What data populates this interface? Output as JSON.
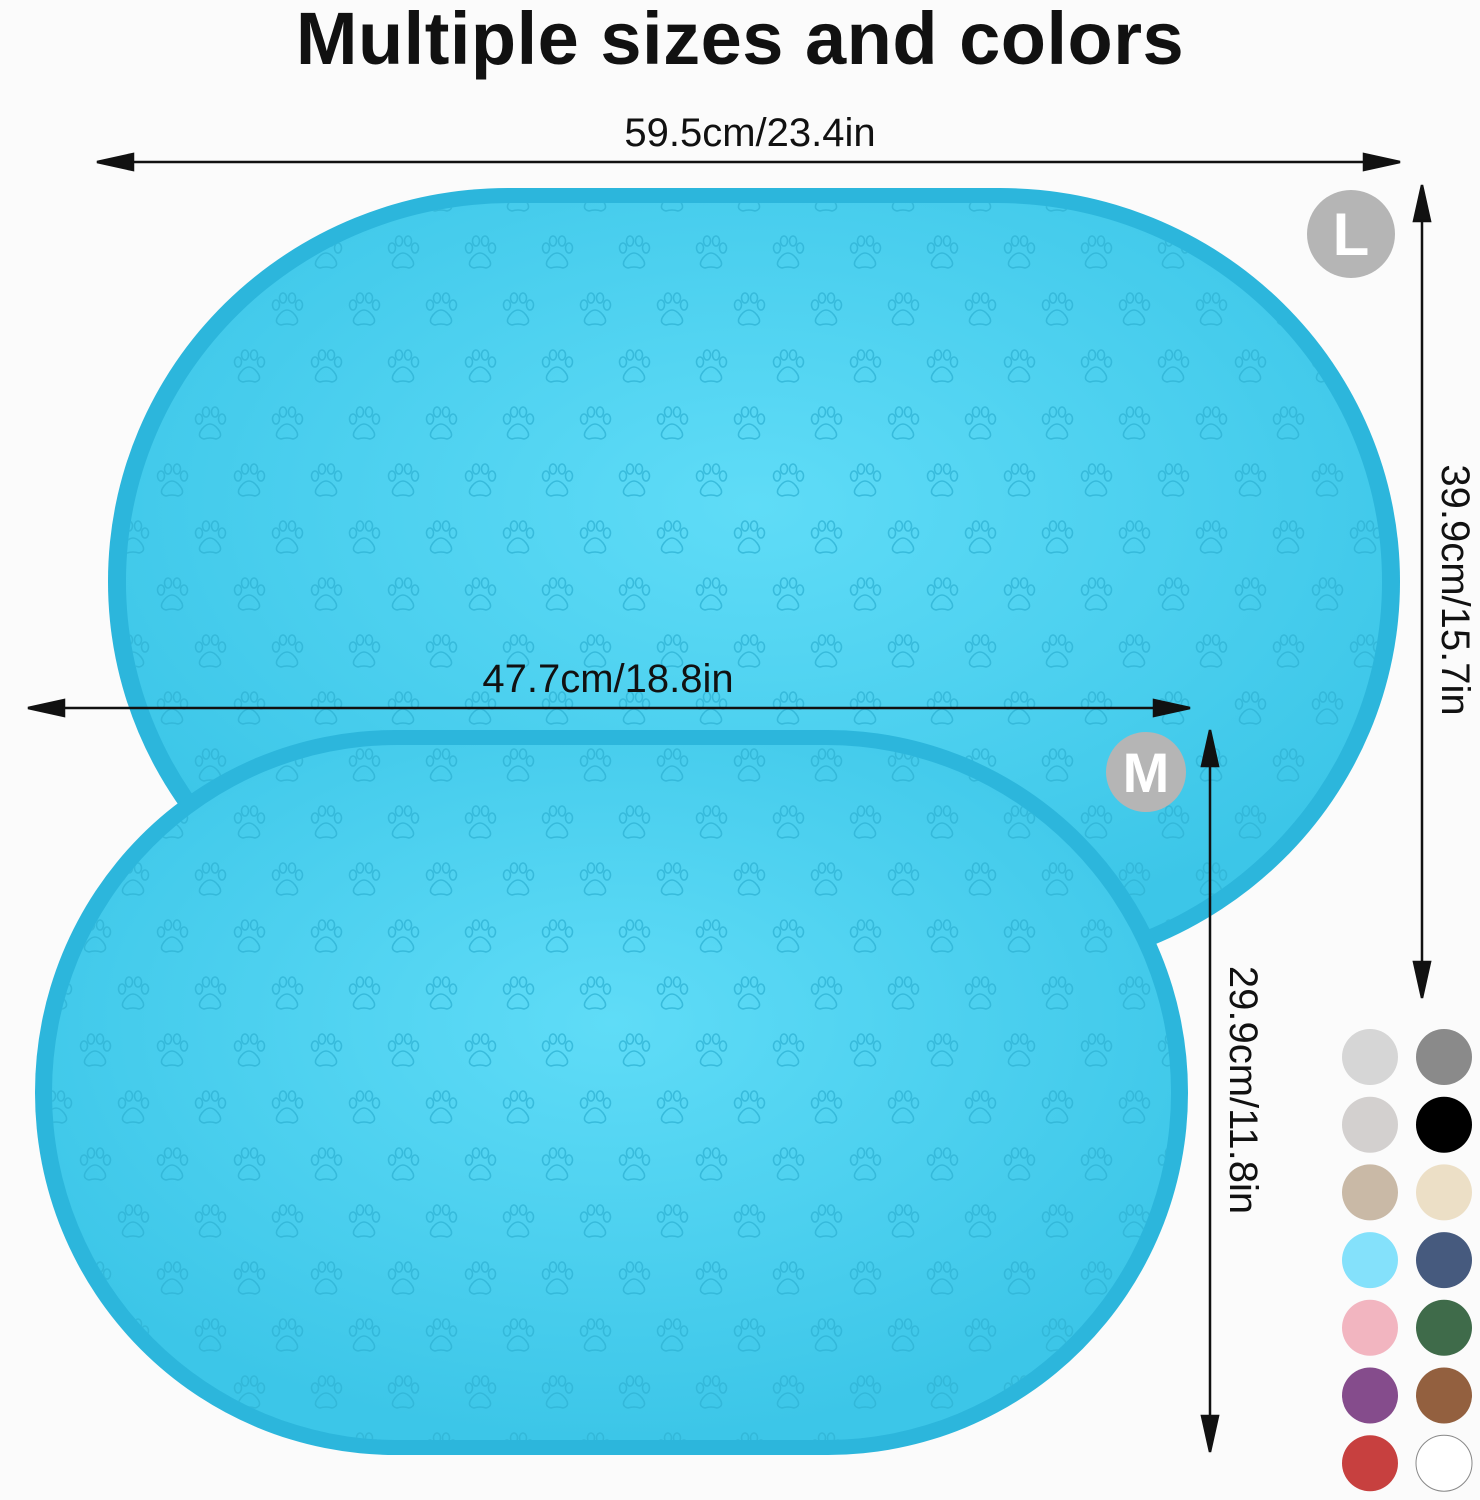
{
  "title": "Multiple sizes and colors",
  "sizes": {
    "large": {
      "badge": "L",
      "width_label": "59.5cm/23.4in",
      "height_label": "39.9cm/15.7in"
    },
    "medium": {
      "badge": "M",
      "width_label": "47.7cm/18.8in",
      "height_label": "29.9cm/11.8in"
    }
  },
  "product_color": "#3cc6e8",
  "pattern_icon": "paw-print-icon",
  "color_swatches": [
    "#d6d6d6",
    "#8a8a8a",
    "#d3d0cf",
    "#000000",
    "#c9b9a6",
    "#ecdfc6",
    "#84e1fb",
    "#465a7e",
    "#f2b5c0",
    "#3f6b4a",
    "#854c8c",
    "#93603f",
    "#c7403f",
    "#ffffff"
  ]
}
